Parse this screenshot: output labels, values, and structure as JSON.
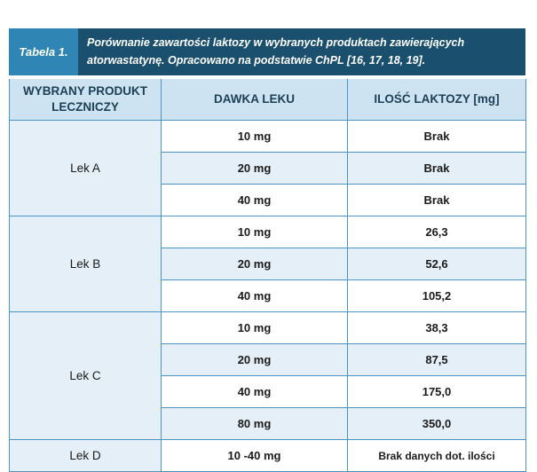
{
  "caption": {
    "label": "Tabela 1.",
    "text": "Porównanie zawartości laktozy w wybranych produktach zawierających atorwastatynę. Opracowano na podstatwie ChPL [16, 17, 18, 19]."
  },
  "columns": [
    "WYBRANY PRODUKT LECZNICZY",
    "DAWKA LEKU",
    "ILOŚĆ LAKTOZY [mg]"
  ],
  "groups": [
    {
      "product": "Lek A",
      "rows": [
        {
          "dose": "10 mg",
          "lactose": "Brak"
        },
        {
          "dose": "20 mg",
          "lactose": "Brak"
        },
        {
          "dose": "40 mg",
          "lactose": "Brak"
        }
      ]
    },
    {
      "product": "Lek B",
      "rows": [
        {
          "dose": "10 mg",
          "lactose": "26,3"
        },
        {
          "dose": "20 mg",
          "lactose": "52,6"
        },
        {
          "dose": "40 mg",
          "lactose": "105,2"
        }
      ]
    },
    {
      "product": "Lek C",
      "rows": [
        {
          "dose": "10 mg",
          "lactose": "38,3"
        },
        {
          "dose": "20 mg",
          "lactose": "87,5"
        },
        {
          "dose": "40 mg",
          "lactose": "175,0"
        },
        {
          "dose": "80 mg",
          "lactose": "350,0"
        }
      ]
    },
    {
      "product": "Lek D",
      "rows": [
        {
          "dose": "10 -40 mg",
          "lactose": "Brak danych dot. ilości"
        }
      ]
    }
  ],
  "colors": {
    "caption_background": "#1a4f6e",
    "caption_label_background": "#2f86b4",
    "header_background": "#cde3f1",
    "alt_row_background": "#e4eff7",
    "border": "#4a93c2"
  }
}
